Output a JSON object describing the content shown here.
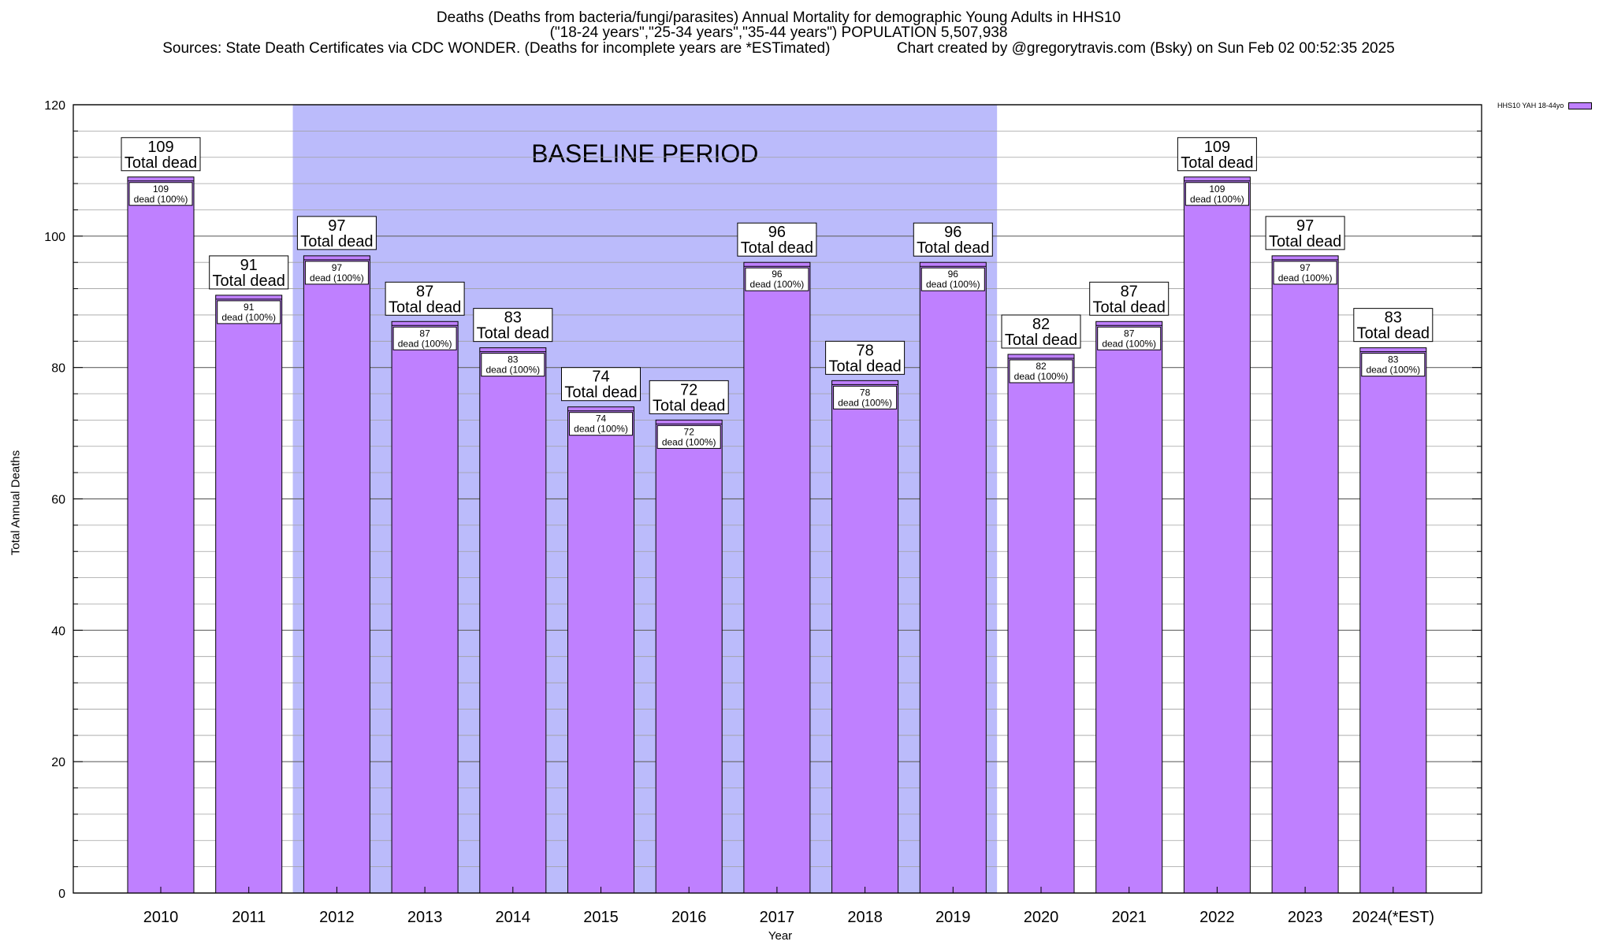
{
  "chart_data": {
    "type": "bar",
    "title_lines": [
      "Deaths (Deaths from bacteria/fungi/parasites) Annual Mortality for demographic Young Adults in HHS10",
      "(\"18-24 years\",\"25-34 years\",\"35-44 years\") POPULATION 5,507,938",
      "Sources: State Death Certificates via CDC WONDER. (Deaths for incomplete years are *ESTimated)                Chart created by @gregorytravis.com (Bsky) on Sun Feb 02 00:52:35 2025"
    ],
    "xlabel": "Year",
    "ylabel": "Total Annual Deaths",
    "categories": [
      "2010",
      "2011",
      "2012",
      "2013",
      "2014",
      "2015",
      "2016",
      "2017",
      "2018",
      "2019",
      "2020",
      "2021",
      "2022",
      "2023",
      "2024(*EST)"
    ],
    "series": [
      {
        "name": "HHS10 YAH 18-44yo",
        "values": [
          109,
          91,
          97,
          87,
          83,
          74,
          72,
          96,
          78,
          96,
          82,
          87,
          109,
          97,
          83
        ]
      }
    ],
    "ylim": [
      0,
      120
    ],
    "yticks": [
      0,
      20,
      40,
      60,
      80,
      100,
      120
    ],
    "grid": true,
    "legend_position": "top-right",
    "bar_label_text": "Total dead",
    "inner_label_text": "dead (100%)",
    "baseline": {
      "label": "BASELINE PERIOD",
      "from": "2012",
      "to": "2019"
    },
    "colors": {
      "bar": "#bf80ff",
      "baseline_band": "#bbbbfb",
      "grid": "#a0a0a0"
    }
  }
}
